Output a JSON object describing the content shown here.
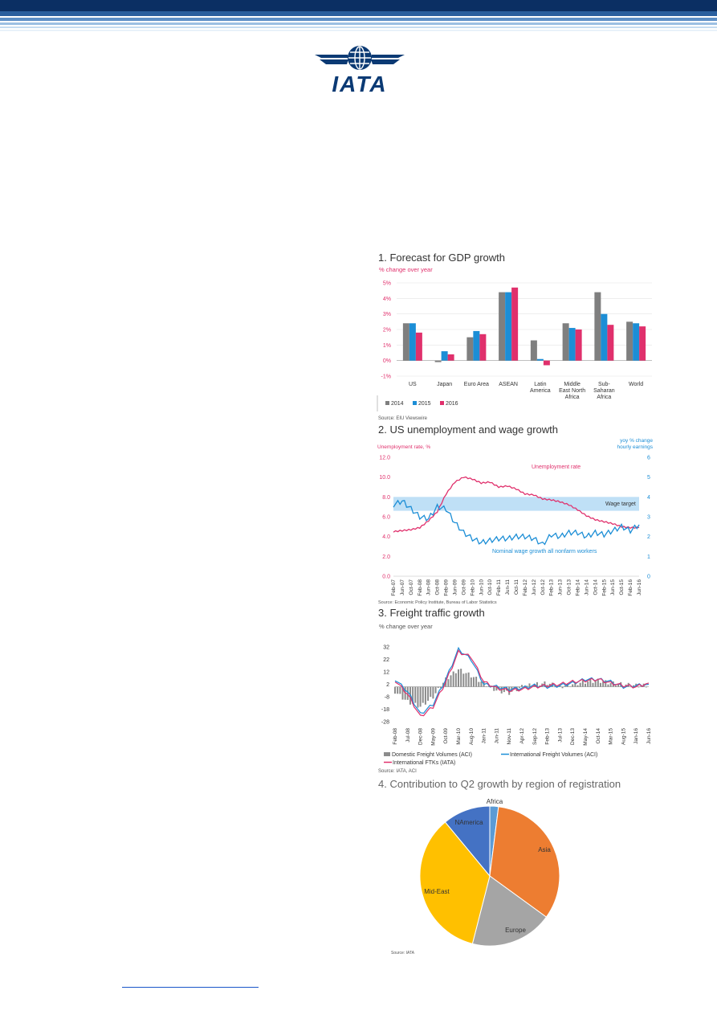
{
  "logo": {
    "text": "IATA"
  },
  "colors": {
    "navy": "#0b2f63",
    "grey": "#7f7f7f",
    "blue": "#1c8ed6",
    "pink": "#e0306c",
    "orange": "#ed7d31",
    "gold": "#ffc000",
    "pieGrey": "#a5a5a5",
    "pieBlue": "#4472c4",
    "pieLight": "#5b9bd5"
  },
  "chart1": {
    "title": "1. Forecast for GDP growth",
    "subtitle": "% change over year",
    "source": "Source: EIU Viewswire"
  },
  "chart2": {
    "title": "2. US unemployment and wage growth",
    "left_axis_label": "Unemployment rate, %",
    "right_axis_label_1": "yoy % change",
    "right_axis_label_2": "hourly earnings",
    "annot_unemployment": "Unemployment rate",
    "annot_wage_target": "Wage target",
    "annot_wage": "Nominal wage growth all nonfarm workers",
    "source": "Source: Economic Policy Institute, Bureau of Labor Statistics"
  },
  "chart3": {
    "title": "3. Freight traffic growth",
    "subtitle": "% change over year",
    "source": "Source: IATA, ACI"
  },
  "chart4": {
    "title": "4. Contribution to Q2 growth by region of registration",
    "source": "Source: IATA"
  },
  "chart_data": [
    {
      "type": "bar",
      "title": "1. Forecast for GDP growth",
      "ylabel": "% change over year",
      "ylim": [
        -1,
        5
      ],
      "yticks": [
        "-1%",
        "0%",
        "1%",
        "2%",
        "3%",
        "4%",
        "5%"
      ],
      "categories": [
        "US",
        "Japan",
        "Euro Area",
        "ASEAN",
        "Latin America",
        "Middle East North Africa",
        "Sub-Saharan Africa",
        "World"
      ],
      "category_lines": [
        [
          "US"
        ],
        [
          "Japan"
        ],
        [
          "Euro Area"
        ],
        [
          "ASEAN"
        ],
        [
          "Latin",
          "America"
        ],
        [
          "Middle",
          "East North",
          "Africa"
        ],
        [
          "Sub-",
          "Saharan",
          "Africa"
        ],
        [
          "World"
        ]
      ],
      "series": [
        {
          "name": "2014",
          "color": "#7f7f7f",
          "values": [
            2.4,
            -0.1,
            1.5,
            4.4,
            1.3,
            2.4,
            4.4,
            2.5
          ]
        },
        {
          "name": "2015",
          "color": "#1c8ed6",
          "values": [
            2.4,
            0.6,
            1.9,
            4.4,
            0.1,
            2.1,
            3.0,
            2.4
          ]
        },
        {
          "name": "2016",
          "color": "#e0306c",
          "values": [
            1.8,
            0.4,
            1.7,
            4.7,
            -0.3,
            2.0,
            2.3,
            2.2
          ]
        }
      ],
      "legend": "bottom-left",
      "grid": true
    },
    {
      "type": "line",
      "title": "2. US unemployment and wage growth",
      "ylabel": "Unemployment rate, %",
      "ylabel_right": "yoy % change hourly earnings",
      "ylim": [
        0,
        12
      ],
      "ylim_right": [
        0,
        6
      ],
      "yticks": [
        "0.0",
        "2.0",
        "4.0",
        "6.0",
        "8.0",
        "10.0",
        "12.0"
      ],
      "yticks_right": [
        "0",
        "1",
        "2",
        "3",
        "4",
        "5",
        "6"
      ],
      "x": [
        "Feb-07",
        "Jun-07",
        "Oct-07",
        "Feb-08",
        "Jun-08",
        "Oct-08",
        "Feb-09",
        "Jun-09",
        "Oct-09",
        "Feb-10",
        "Jun-10",
        "Oct-10",
        "Feb-11",
        "Jun-11",
        "Oct-11",
        "Feb-12",
        "Jun-12",
        "Oct-12",
        "Feb-13",
        "Jun-13",
        "Oct-13",
        "Feb-14",
        "Jun-14",
        "Oct-14",
        "Feb-15",
        "Jun-15",
        "Oct-15",
        "Feb-16",
        "Jun-16"
      ],
      "wage_target_band": [
        3.3,
        4.0
      ],
      "series": [
        {
          "name": "Unemployment rate",
          "axis": "left",
          "color": "#e0306c",
          "values": [
            4.5,
            4.6,
            4.7,
            4.9,
            5.6,
            6.5,
            8.3,
            9.5,
            10.0,
            9.8,
            9.4,
            9.5,
            9.0,
            9.1,
            8.8,
            8.3,
            8.2,
            7.8,
            7.7,
            7.5,
            7.2,
            6.7,
            6.1,
            5.7,
            5.5,
            5.3,
            5.0,
            4.9,
            4.9
          ]
        },
        {
          "name": "Nominal wage growth all nonfarm workers",
          "axis": "right",
          "color": "#1c8ed6",
          "values": [
            3.6,
            3.8,
            3.4,
            3.0,
            2.9,
            3.5,
            3.4,
            2.7,
            2.2,
            1.9,
            1.7,
            1.8,
            1.9,
            1.9,
            2.0,
            2.0,
            1.9,
            1.6,
            2.1,
            2.0,
            2.2,
            2.2,
            2.0,
            2.2,
            2.1,
            2.3,
            2.5,
            2.3,
            2.6
          ]
        }
      ],
      "grid": true
    },
    {
      "type": "bar",
      "title": "3. Freight traffic growth",
      "ylabel": "% change over year",
      "ylim": [
        -28,
        32
      ],
      "yticks": [
        "-28",
        "-18",
        "-8",
        "2",
        "12",
        "22",
        "32"
      ],
      "x": [
        "Feb-08",
        "Jul-08",
        "Dec-08",
        "May-09",
        "Oct-09",
        "Mar-10",
        "Aug-10",
        "Jan-11",
        "Jun-11",
        "Nov-11",
        "Apr-12",
        "Sep-12",
        "Feb-13",
        "Jul-13",
        "Dec-13",
        "May-14",
        "Oct-14",
        "Mar-15",
        "Aug-15",
        "Jan-16",
        "Jun-16"
      ],
      "series": [
        {
          "name": "Domestic Freight Volumes (ACI)",
          "kind": "bar",
          "color": "#8c8c8c",
          "values": [
            -4,
            -12,
            -16,
            -8,
            6,
            14,
            9,
            3,
            -3,
            -5,
            0,
            2,
            3,
            0,
            2,
            4,
            5,
            3,
            2,
            1,
            1
          ]
        },
        {
          "name": "International Freight Volumes (ACI)",
          "kind": "line",
          "color": "#1c8ed6",
          "values": [
            6,
            -4,
            -22,
            -14,
            6,
            30,
            22,
            2,
            0,
            -2,
            -1,
            1,
            0,
            1,
            3,
            6,
            6,
            4,
            0,
            1,
            2
          ]
        },
        {
          "name": "International FTKs (IATA)",
          "kind": "line",
          "color": "#e0306c",
          "values": [
            5,
            -6,
            -24,
            -16,
            4,
            28,
            24,
            4,
            -1,
            -3,
            -2,
            0,
            1,
            2,
            4,
            5,
            6,
            3,
            1,
            0,
            3
          ]
        }
      ],
      "legend": "bottom"
    },
    {
      "type": "pie",
      "title": "4. Contribution to Q2 growth by region of registration",
      "categories": [
        "Africa",
        "Asia",
        "Europe",
        "Mid-East",
        "NAmerica"
      ],
      "values": [
        2,
        33,
        19,
        35,
        11
      ],
      "colors": [
        "#5b9bd5",
        "#ed7d31",
        "#a5a5a5",
        "#ffc000",
        "#4472c4"
      ]
    }
  ]
}
